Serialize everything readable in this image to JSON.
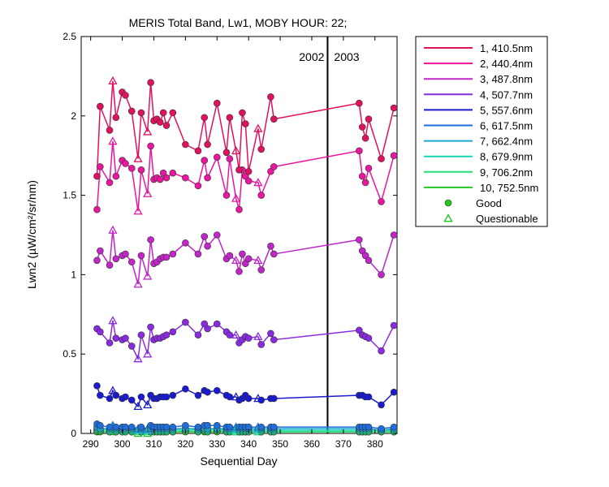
{
  "chart_data": {
    "type": "line",
    "title": "MERIS Total Band, Lw1, MOBY HOUR: 22;",
    "xlabel": "Sequential Day",
    "ylabel": "Lwn2 (µW/cm²/sr/nm)",
    "xlim": [
      287,
      387
    ],
    "ylim": [
      0,
      2.5
    ],
    "xticks": [
      290,
      300,
      310,
      320,
      330,
      340,
      350,
      360,
      370,
      380
    ],
    "yticks": [
      0,
      0.5,
      1,
      1.5,
      2,
      2.5
    ],
    "grid": false,
    "legend_position": "outside-right",
    "year_divider": {
      "x": 365,
      "left_label": "2002",
      "right_label": "2003"
    },
    "x": [
      292,
      293,
      296,
      297,
      298,
      300,
      301,
      303,
      305,
      306,
      308,
      309,
      310,
      311,
      312,
      313,
      314,
      316,
      320,
      324,
      326,
      327,
      330,
      333,
      334,
      336,
      337,
      338,
      339,
      340,
      343,
      344,
      347,
      348,
      375,
      376,
      377,
      378,
      382,
      386
    ],
    "quality": [
      "G",
      "G",
      "G",
      "Q",
      "G",
      "G",
      "G",
      "G",
      "Q",
      "G",
      "Q",
      "G",
      "G",
      "G",
      "G",
      "G",
      "G",
      "G",
      "G",
      "G",
      "G",
      "G",
      "G",
      "G",
      "G",
      "Q",
      "G",
      "G",
      "G",
      "G",
      "Q",
      "G",
      "G",
      "G",
      "G",
      "G",
      "G",
      "G",
      "G",
      "G"
    ],
    "series": [
      {
        "name": "1, 410.5nm",
        "color": "#e0115f",
        "values": [
          1.62,
          2.06,
          1.91,
          2.22,
          1.99,
          2.15,
          2.13,
          2.03,
          1.73,
          2.02,
          1.9,
          2.21,
          1.97,
          1.98,
          1.96,
          2.02,
          1.94,
          2.02,
          1.82,
          1.78,
          1.99,
          1.82,
          2.08,
          1.77,
          1.99,
          1.78,
          1.66,
          2.02,
          1.95,
          1.65,
          1.92,
          1.79,
          2.12,
          1.98,
          2.08,
          1.93,
          1.86,
          1.98,
          1.73,
          2.05
        ]
      },
      {
        "name": "2, 440.4nm",
        "color": "#e8179e",
        "values": [
          1.41,
          1.68,
          1.58,
          1.84,
          1.62,
          1.72,
          1.7,
          1.67,
          1.4,
          1.66,
          1.51,
          1.81,
          1.6,
          1.61,
          1.6,
          1.64,
          1.61,
          1.64,
          1.61,
          1.56,
          1.72,
          1.61,
          1.74,
          1.5,
          1.73,
          1.48,
          1.41,
          1.66,
          1.62,
          1.59,
          1.58,
          1.5,
          1.65,
          1.68,
          1.78,
          1.62,
          1.58,
          1.67,
          1.46,
          1.75
        ]
      },
      {
        "name": "3, 487.8nm",
        "color": "#c026c8",
        "values": [
          1.09,
          1.15,
          1.06,
          1.28,
          1.1,
          1.12,
          1.13,
          1.08,
          0.94,
          1.12,
          0.99,
          1.22,
          1.07,
          1.08,
          1.1,
          1.11,
          1.11,
          1.13,
          1.2,
          1.13,
          1.24,
          1.18,
          1.25,
          1.1,
          1.12,
          1.09,
          1.02,
          1.13,
          1.07,
          1.1,
          1.09,
          1.03,
          1.18,
          1.13,
          1.22,
          1.15,
          1.12,
          1.09,
          1.0,
          1.25
        ]
      },
      {
        "name": "4, 507.7nm",
        "color": "#8a2be2",
        "values": [
          0.66,
          0.64,
          0.57,
          0.71,
          0.6,
          0.59,
          0.6,
          0.55,
          0.47,
          0.62,
          0.5,
          0.67,
          0.59,
          0.6,
          0.6,
          0.61,
          0.62,
          0.64,
          0.7,
          0.62,
          0.69,
          0.66,
          0.69,
          0.64,
          0.62,
          0.62,
          0.57,
          0.59,
          0.61,
          0.6,
          0.61,
          0.56,
          0.63,
          0.59,
          0.65,
          0.62,
          0.61,
          0.6,
          0.52,
          0.68
        ]
      },
      {
        "name": "5, 557.6nm",
        "color": "#1a1ad0",
        "values": [
          0.3,
          0.24,
          0.22,
          0.27,
          0.24,
          0.22,
          0.23,
          0.21,
          0.17,
          0.23,
          0.18,
          0.24,
          0.22,
          0.22,
          0.23,
          0.23,
          0.23,
          0.24,
          0.28,
          0.24,
          0.27,
          0.26,
          0.27,
          0.24,
          0.23,
          0.23,
          0.21,
          0.22,
          0.24,
          0.22,
          0.22,
          0.21,
          0.22,
          0.22,
          0.24,
          0.24,
          0.23,
          0.23,
          0.18,
          0.26
        ]
      },
      {
        "name": "6, 617.5nm",
        "color": "#1e6fdc",
        "values": [
          0.06,
          0.05,
          0.04,
          0.05,
          0.04,
          0.04,
          0.04,
          0.04,
          0.03,
          0.04,
          0.03,
          0.05,
          0.04,
          0.04,
          0.04,
          0.04,
          0.04,
          0.04,
          0.05,
          0.04,
          0.05,
          0.05,
          0.05,
          0.04,
          0.04,
          0.04,
          0.04,
          0.04,
          0.04,
          0.04,
          0.04,
          0.04,
          0.04,
          0.04,
          0.04,
          0.04,
          0.04,
          0.04,
          0.03,
          0.04
        ]
      },
      {
        "name": "7, 662.4nm",
        "color": "#1aa6cf",
        "values": [
          0.04,
          0.03,
          0.03,
          0.04,
          0.03,
          0.03,
          0.03,
          0.03,
          0.02,
          0.03,
          0.02,
          0.03,
          0.03,
          0.03,
          0.03,
          0.03,
          0.03,
          0.03,
          0.03,
          0.03,
          0.03,
          0.03,
          0.03,
          0.03,
          0.03,
          0.03,
          0.03,
          0.03,
          0.03,
          0.03,
          0.03,
          0.03,
          0.03,
          0.03,
          0.03,
          0.03,
          0.03,
          0.03,
          0.02,
          0.03
        ]
      },
      {
        "name": "8, 679.9nm",
        "color": "#12d6b4",
        "values": [
          0.03,
          0.03,
          0.02,
          0.03,
          0.02,
          0.02,
          0.02,
          0.02,
          0.02,
          0.02,
          0.02,
          0.02,
          0.02,
          0.02,
          0.02,
          0.02,
          0.02,
          0.02,
          0.03,
          0.02,
          0.03,
          0.02,
          0.03,
          0.02,
          0.02,
          0.02,
          0.02,
          0.02,
          0.02,
          0.02,
          0.02,
          0.02,
          0.02,
          0.02,
          0.02,
          0.02,
          0.02,
          0.02,
          0.02,
          0.02
        ]
      },
      {
        "name": "9, 706.2nm",
        "color": "#22e07a",
        "values": [
          0.02,
          0.02,
          0.01,
          0.02,
          0.01,
          0.01,
          0.01,
          0.01,
          0.01,
          0.01,
          0.01,
          0.01,
          0.01,
          0.01,
          0.01,
          0.01,
          0.01,
          0.01,
          0.02,
          0.01,
          0.02,
          0.01,
          0.02,
          0.01,
          0.01,
          0.01,
          0.01,
          0.01,
          0.01,
          0.01,
          0.01,
          0.01,
          0.01,
          0.01,
          0.01,
          0.01,
          0.01,
          0.01,
          0.01,
          0.01
        ]
      },
      {
        "name": "10, 752.5nm",
        "color": "#22c81e",
        "values": [
          0.01,
          0.01,
          0.01,
          0.01,
          0.01,
          0.01,
          0.01,
          0.01,
          0.0,
          0.01,
          0.0,
          0.01,
          0.01,
          0.01,
          0.01,
          0.01,
          0.01,
          0.01,
          0.01,
          0.01,
          0.01,
          0.01,
          0.01,
          0.01,
          0.01,
          0.01,
          0.01,
          0.01,
          0.01,
          0.01,
          0.01,
          0.01,
          0.01,
          0.01,
          0.01,
          0.01,
          0.01,
          0.01,
          0.01,
          0.01
        ]
      }
    ],
    "legend_markers": [
      {
        "label": "Good",
        "marker": "circle",
        "color": "#22c81e"
      },
      {
        "label": "Questionable",
        "marker": "triangle",
        "color": "#22c81e"
      }
    ]
  }
}
